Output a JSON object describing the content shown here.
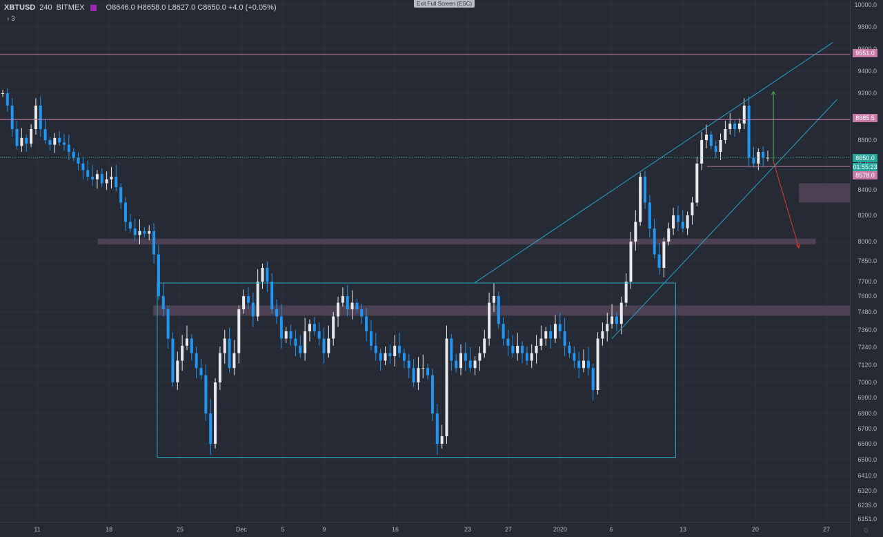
{
  "header": {
    "symbol": "XBTUSD",
    "interval": "240",
    "exchange": "BITMEX",
    "ohlc": "O8646.0  H8658.0  L8627.0  C8650.0  +4.0 (+0.05%)",
    "indicators_label": "› 3",
    "exit_fullscreen": "Exit Full Screen (ESC)"
  },
  "colors": {
    "background": "#262a34",
    "up": "#e8eaed",
    "down": "#2196f3",
    "channel": "#26a5c4",
    "zone": "#5a4a5e",
    "resistance": "#c77ba6",
    "current": "#26a69a"
  },
  "chart_data": {
    "type": "candlestick",
    "ylim": [
      6151,
      10000
    ],
    "y_ticks": [
      "10000.0",
      "9800.0",
      "9600.0",
      "9400.0",
      "9200.0",
      "9000.0",
      "8800.0",
      "8600.0",
      "8400.0",
      "8200.0",
      "8000.0",
      "7850.0",
      "7700.0",
      "7600.0",
      "7480.0",
      "7360.0",
      "7240.0",
      "7120.0",
      "7000.0",
      "6900.0",
      "6800.0",
      "6700.0",
      "6600.0",
      "6500.0",
      "6410.0",
      "6320.0",
      "6235.0",
      "6151.0"
    ],
    "x_ticks": [
      "11",
      "18",
      "25",
      "Dec",
      "5",
      "9",
      "16",
      "23",
      "27",
      "2020",
      "6",
      "13",
      "20",
      "27"
    ],
    "price_labels": [
      {
        "label": "9551.0",
        "value": 9551,
        "color": "#c77ba6"
      },
      {
        "label": "8985.5",
        "value": 8985.5,
        "color": "#c77ba6"
      },
      {
        "label": "8650.0",
        "value": 8650,
        "color": "#26a69a"
      },
      {
        "label": "01:55:23",
        "value": 8605,
        "color": "#26a69a"
      },
      {
        "label": "8578.0",
        "value": 8578,
        "color": "#c77ba6"
      }
    ],
    "horizontal_lines": [
      9551,
      8985.5
    ],
    "zones": [
      {
        "x_start": 11.5,
        "x_end": 96,
        "low": 7978,
        "high": 8022
      },
      {
        "x_start": 94,
        "x_end": 100,
        "low": 8300,
        "high": 8450
      },
      {
        "x_start": 18,
        "x_end": 100,
        "low": 7455,
        "high": 7530
      }
    ],
    "range_box": {
      "x_start": 18.5,
      "x_end": 79.5,
      "low": 6515,
      "high": 7690
    },
    "channel_lines": [
      {
        "x1": 55.8,
        "y1": 7690,
        "x2": 98,
        "y2": 9660
      },
      {
        "x1": 72,
        "y1": 7300,
        "x2": 98.5,
        "y2": 9150
      }
    ],
    "arrows": [
      {
        "x": 91,
        "from": 8620,
        "to": 9215,
        "color": "#4caf50"
      },
      {
        "x1": 91,
        "y1": 8620,
        "x2": 94,
        "y2": 7950,
        "color": "#e53935"
      }
    ],
    "candles_close": [
      9200,
      9100,
      8900,
      8750,
      8820,
      8770,
      8900,
      9100,
      8900,
      8800,
      8760,
      8820,
      8780,
      8760,
      8700,
      8650,
      8600,
      8550,
      8500,
      8480,
      8520,
      8450,
      8480,
      8500,
      8420,
      8300,
      8150,
      8100,
      8050,
      8080,
      8060,
      8080,
      7900,
      7600,
      7500,
      7300,
      7000,
      7150,
      7250,
      7300,
      7200,
      7100,
      7050,
      6800,
      6600,
      7000,
      7200,
      7300,
      7100,
      7200,
      7500,
      7600,
      7550,
      7450,
      7700,
      7800,
      7700,
      7500,
      7450,
      7300,
      7350,
      7300,
      7250,
      7200,
      7350,
      7400,
      7350,
      7300,
      7200,
      7300,
      7450,
      7550,
      7600,
      7500,
      7550,
      7500,
      7450,
      7350,
      7250,
      7200,
      7150,
      7200,
      7180,
      7250,
      7200,
      7150,
      7100,
      7000,
      7100,
      7100,
      7050,
      6800,
      6600,
      6650,
      7300,
      7150,
      7100,
      7200,
      7150,
      7100,
      7150,
      7200,
      7300,
      7550,
      7600,
      7400,
      7300,
      7250,
      7200,
      7250,
      7200,
      7150,
      7200,
      7250,
      7300,
      7350,
      7300,
      7400,
      7350,
      7250,
      7200,
      7150,
      7100,
      7150,
      7100,
      6950,
      7300,
      7350,
      7400,
      7450,
      7400,
      7550,
      7700,
      8000,
      8150,
      8500,
      8300,
      8100,
      7900,
      7800,
      8000,
      8100,
      8200,
      8150,
      8100,
      8200,
      8300,
      8600,
      8800,
      8850,
      8750,
      8700,
      8800,
      8900,
      8950,
      8900,
      8950,
      9100,
      8650,
      8600,
      8700,
      8650,
      8650
    ]
  }
}
